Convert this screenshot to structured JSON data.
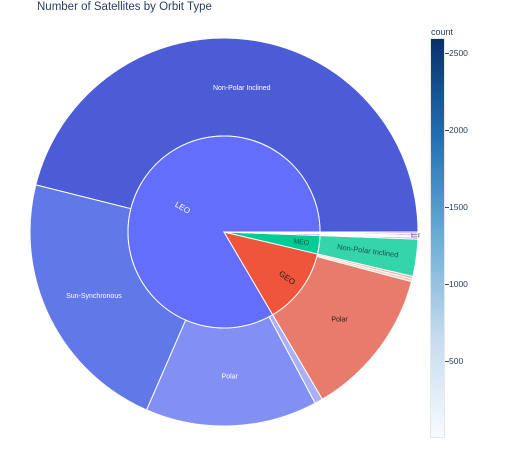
{
  "chart_data": {
    "type": "sunburst",
    "title": "Number of Satellites by Orbit Type",
    "colorbar": {
      "title": "count",
      "ticks": [
        500,
        1000,
        1500,
        2000,
        2500
      ],
      "range": [
        0,
        2600
      ],
      "colors": [
        "#f7fbff",
        "#c6dbef",
        "#6baed6",
        "#2171b5",
        "#08306b"
      ]
    },
    "inner": [
      {
        "label": "LEO",
        "value": 3730,
        "color": "#636efa"
      },
      {
        "label": "GEO",
        "value": 575,
        "color": "#ef553b"
      },
      {
        "label": "MEO",
        "value": 138,
        "color": "#00cc96"
      },
      {
        "label": "",
        "value": 12,
        "color": "#ab63fa"
      },
      {
        "label": "",
        "value": 8,
        "color": "#b16ef8"
      },
      {
        "label": "",
        "value": 6,
        "color": "#ba7ef9"
      }
    ],
    "outer": [
      {
        "parent": "LEO",
        "label": "Non-Polar Inclined",
        "value": 2060,
        "color": "#4c5cd6"
      },
      {
        "parent": "LEO",
        "label": "Sun-Synchronous",
        "value": 1000,
        "color": "#6178e8"
      },
      {
        "parent": "LEO",
        "label": "Polar",
        "value": 640,
        "color": "#8190f2"
      },
      {
        "parent": "LEO",
        "label": "",
        "value": 30,
        "color": "#a9b1f6"
      },
      {
        "parent": "GEO",
        "label": "",
        "value": 10,
        "color": "#f7b2a5"
      },
      {
        "parent": "GEO",
        "label": "",
        "value": 10,
        "color": "#f4c6bd"
      },
      {
        "parent": "GEO",
        "label": "Polar",
        "value": 555,
        "color": "#e87b6b"
      },
      {
        "parent": "MEO",
        "label": "Non-Polar Inclined",
        "value": 138,
        "color": "#33d6ab"
      },
      {
        "parent": "",
        "label": "Polar",
        "value": 6,
        "color": "#c08af8"
      },
      {
        "parent": "",
        "label": "Non-Polar Inclined",
        "value": 6,
        "color": "#b277fa"
      },
      {
        "parent": "",
        "label": "Polar",
        "value": 4,
        "color": "#c99bf9"
      },
      {
        "parent": "",
        "label": "Non-Polar Inclined",
        "value": 4,
        "color": "#a768f7"
      },
      {
        "parent": "",
        "label": "Polar",
        "value": 6,
        "color": "#bd86f7"
      }
    ]
  }
}
